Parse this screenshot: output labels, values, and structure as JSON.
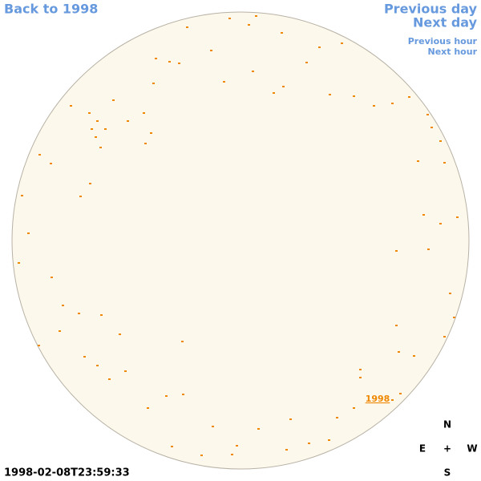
{
  "navigation": {
    "back": "Back to 1998",
    "previous_day": "Previous day",
    "next_day": "Next day",
    "previous_hour": "Previous hour",
    "next_hour": "Next hour"
  },
  "timestamp": "1998-02-08T23:59:33",
  "compass": {
    "north": "N",
    "east": "E",
    "center": "+",
    "west": "W",
    "south": "S"
  },
  "disk_label": "1998"
}
